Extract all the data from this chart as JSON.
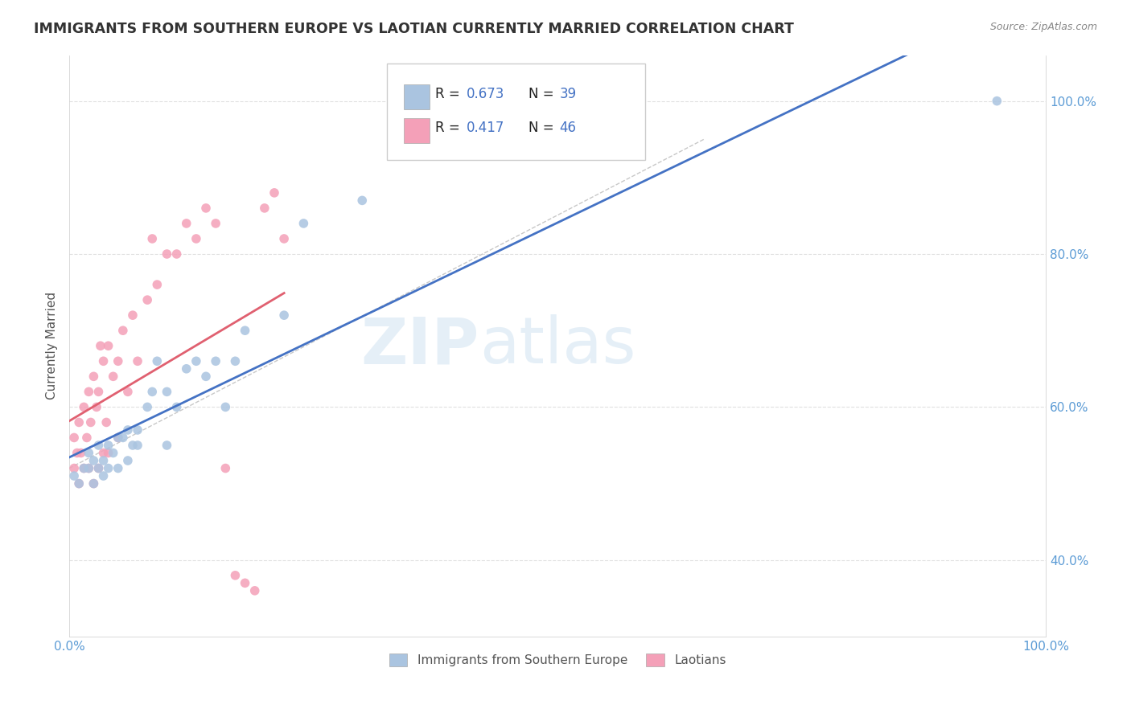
{
  "title": "IMMIGRANTS FROM SOUTHERN EUROPE VS LAOTIAN CURRENTLY MARRIED CORRELATION CHART",
  "source": "Source: ZipAtlas.com",
  "ylabel": "Currently Married",
  "watermark_zip": "ZIP",
  "watermark_atlas": "atlas",
  "legend_blue_r": "0.673",
  "legend_blue_n": "39",
  "legend_pink_r": "0.417",
  "legend_pink_n": "46",
  "legend_label_blue": "Immigrants from Southern Europe",
  "legend_label_pink": "Laotians",
  "xlim": [
    0.0,
    1.0
  ],
  "ylim": [
    0.3,
    1.06
  ],
  "xtick_labels": [
    "0.0%",
    "",
    "",
    "",
    "",
    "",
    "",
    "",
    "",
    "",
    "100.0%"
  ],
  "xtick_vals": [
    0.0,
    0.1,
    0.2,
    0.3,
    0.4,
    0.5,
    0.6,
    0.7,
    0.8,
    0.9,
    1.0
  ],
  "ytick_labels": [
    "40.0%",
    "60.0%",
    "80.0%",
    "100.0%"
  ],
  "ytick_vals": [
    0.4,
    0.6,
    0.8,
    1.0
  ],
  "blue_scatter_x": [
    0.005,
    0.01,
    0.015,
    0.02,
    0.02,
    0.025,
    0.025,
    0.03,
    0.03,
    0.035,
    0.035,
    0.04,
    0.04,
    0.045,
    0.05,
    0.05,
    0.055,
    0.06,
    0.06,
    0.065,
    0.07,
    0.07,
    0.08,
    0.085,
    0.09,
    0.1,
    0.1,
    0.11,
    0.12,
    0.13,
    0.14,
    0.15,
    0.16,
    0.17,
    0.18,
    0.22,
    0.24,
    0.3,
    0.95
  ],
  "blue_scatter_y": [
    0.51,
    0.5,
    0.52,
    0.52,
    0.54,
    0.5,
    0.53,
    0.52,
    0.55,
    0.51,
    0.53,
    0.52,
    0.55,
    0.54,
    0.52,
    0.56,
    0.56,
    0.53,
    0.57,
    0.55,
    0.55,
    0.57,
    0.6,
    0.62,
    0.66,
    0.55,
    0.62,
    0.6,
    0.65,
    0.66,
    0.64,
    0.66,
    0.6,
    0.66,
    0.7,
    0.72,
    0.84,
    0.87,
    1.0
  ],
  "pink_scatter_x": [
    0.005,
    0.005,
    0.008,
    0.01,
    0.01,
    0.012,
    0.015,
    0.015,
    0.018,
    0.02,
    0.02,
    0.022,
    0.025,
    0.025,
    0.028,
    0.03,
    0.03,
    0.032,
    0.035,
    0.035,
    0.038,
    0.04,
    0.04,
    0.045,
    0.05,
    0.05,
    0.055,
    0.06,
    0.065,
    0.07,
    0.08,
    0.085,
    0.09,
    0.1,
    0.11,
    0.12,
    0.13,
    0.14,
    0.15,
    0.16,
    0.17,
    0.18,
    0.19,
    0.2,
    0.21,
    0.22
  ],
  "pink_scatter_y": [
    0.52,
    0.56,
    0.54,
    0.5,
    0.58,
    0.54,
    0.52,
    0.6,
    0.56,
    0.52,
    0.62,
    0.58,
    0.5,
    0.64,
    0.6,
    0.52,
    0.62,
    0.68,
    0.54,
    0.66,
    0.58,
    0.54,
    0.68,
    0.64,
    0.56,
    0.66,
    0.7,
    0.62,
    0.72,
    0.66,
    0.74,
    0.82,
    0.76,
    0.8,
    0.8,
    0.84,
    0.82,
    0.86,
    0.84,
    0.52,
    0.38,
    0.37,
    0.36,
    0.86,
    0.88,
    0.82
  ],
  "blue_color": "#aac4e0",
  "pink_color": "#f4a0b8",
  "blue_line_color": "#4472c4",
  "pink_line_color": "#e06070",
  "dash_line_color": "#c8c8c8",
  "background_color": "#ffffff",
  "grid_color": "#e0e0e0",
  "title_color": "#333333",
  "source_color": "#888888",
  "value_color": "#4472c4",
  "label_color": "#5b9bd5"
}
